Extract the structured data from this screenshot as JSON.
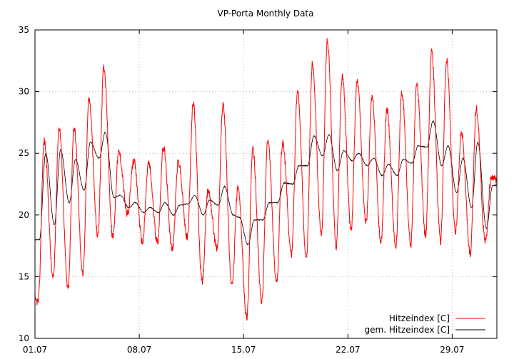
{
  "chart_data": {
    "type": "line",
    "title": "VP-Porta Monthly Data",
    "xlabel": "",
    "ylabel": "",
    "ylim": [
      10,
      35
    ],
    "y_ticks": [
      10,
      15,
      20,
      25,
      30,
      35
    ],
    "x_range_days": [
      0,
      31
    ],
    "x_ticks": [
      {
        "day": 0,
        "label": "01.07"
      },
      {
        "day": 7,
        "label": "08.07"
      },
      {
        "day": 14,
        "label": "15.07"
      },
      {
        "day": 21,
        "label": "22.07"
      },
      {
        "day": 28,
        "label": "29.07"
      }
    ],
    "grid": true,
    "legend_position": "bottom-right",
    "series": [
      {
        "name": "Hitzeindex [C]",
        "color": "#ff0000",
        "daily_min": [
          13.0,
          14.8,
          14.0,
          15.2,
          18.3,
          18.2,
          20.0,
          17.8,
          17.8,
          17.2,
          18.2,
          14.6,
          17.3,
          14.2,
          11.7,
          12.9,
          14.4,
          16.8,
          16.4,
          18.3,
          17.5,
          18.8,
          19.3,
          17.8,
          17.4,
          17.6,
          18.3,
          17.9,
          18.6,
          16.8,
          17.8
        ],
        "daily_max": [
          26.0,
          27.1,
          27.1,
          29.4,
          32.0,
          25.1,
          24.4,
          24.2,
          25.5,
          24.3,
          29.0,
          22.0,
          29.0,
          22.2,
          25.3,
          26.0,
          25.9,
          30.0,
          32.3,
          34.1,
          31.2,
          30.9,
          29.5,
          28.5,
          29.9,
          30.6,
          33.2,
          32.6,
          26.8,
          28.6,
          22.9
        ]
      },
      {
        "name": "gem. Hitzeindex [C]",
        "color": "#000000",
        "daily_min": [
          18.0,
          19.2,
          21.0,
          22.0,
          24.6,
          21.4,
          20.6,
          20.2,
          20.2,
          20.0,
          20.9,
          20.0,
          20.8,
          20.0,
          17.6,
          19.6,
          21.0,
          22.5,
          24.0,
          24.8,
          23.6,
          24.4,
          24.0,
          23.2,
          23.2,
          24.2,
          25.5,
          24.0,
          21.8,
          20.6,
          18.9
        ],
        "daily_max": [
          25.0,
          25.3,
          24.5,
          25.9,
          26.7,
          21.6,
          21.0,
          20.6,
          21.0,
          20.8,
          21.6,
          21.2,
          22.3,
          19.8,
          19.6,
          21.0,
          22.6,
          24.0,
          26.4,
          26.5,
          25.2,
          25.0,
          24.6,
          24.1,
          24.5,
          25.6,
          27.6,
          25.6,
          24.6,
          25.9,
          22.4
        ]
      }
    ]
  }
}
